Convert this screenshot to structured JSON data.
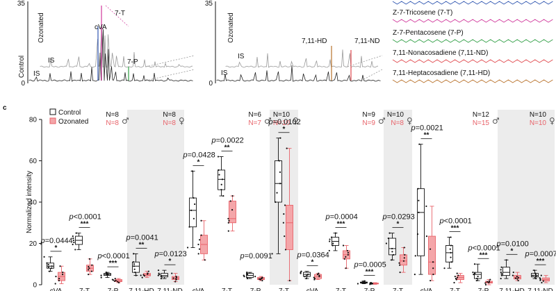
{
  "panel_top": {
    "left": {
      "ymax_label": "35",
      "zero_label": "0",
      "row_labels": [
        "Control",
        "Ozonated"
      ],
      "peak_labels": [
        {
          "text": "7-T",
          "color": "#d0379b"
        },
        {
          "text": "cVA",
          "color": "#2e55b0"
        },
        {
          "text": "7-P",
          "color": "#2f9e44"
        },
        {
          "text": "IS",
          "color": "#111111"
        },
        {
          "text": "IS",
          "color": "#111111"
        }
      ]
    },
    "right": {
      "ymax_label": "35",
      "zero_label": "0",
      "row_labels": [
        "Ozonated"
      ],
      "peak_labels": [
        {
          "text": "7,11-HD",
          "color": "#b8712a"
        },
        {
          "text": "7,11-ND",
          "color": "#e0474c"
        },
        {
          "text": "IS",
          "color": "#111111"
        },
        {
          "text": "IS",
          "color": "#111111"
        }
      ]
    },
    "compounds": [
      {
        "name": "Z-7-Tricosene (7-T)",
        "color": "#d0379b"
      },
      {
        "name": "Z-7-Pentacosene (7-P)",
        "color": "#2f9e44"
      },
      {
        "name": "7,11-Nonacosadiene (7,11-ND)",
        "color": "#e0474c"
      },
      {
        "name": "7,11-Heptacosadiene (7,11-HD)",
        "color": "#b8712a"
      }
    ]
  },
  "panel_label": "c",
  "chart_data": {
    "type": "box",
    "ylabel": "Normalized intensity",
    "ylim": [
      0,
      80
    ],
    "yticks": [
      0,
      20,
      40,
      60,
      80
    ],
    "legend": [
      {
        "name": "Control",
        "color": "#ffffff",
        "edge": "#111111"
      },
      {
        "name": "Ozonated",
        "color": "#f4a6a9",
        "edge": "#e8636a"
      }
    ],
    "groups": [
      {
        "sex": "♂",
        "n_control": "N=8",
        "n_ozonated": "N=8",
        "shaded": false,
        "categories": [
          "cVA",
          "7-T",
          "7-P"
        ],
        "control": [
          [
            6.5,
            8,
            9,
            10.5,
            13.5
          ],
          [
            17,
            19.5,
            21.5,
            23.5,
            25
          ],
          [
            3.5,
            4.5,
            5,
            5.5,
            6
          ]
        ],
        "ozonated": [
          [
            0.5,
            2,
            4,
            6,
            9
          ],
          [
            5,
            6.5,
            8,
            9.5,
            12.5
          ],
          [
            1,
            1.5,
            2,
            2.5,
            3
          ]
        ],
        "pvalues": [
          "0.0444",
          "<0.0001",
          "<0.0001"
        ],
        "stars": [
          "*",
          "***",
          "***"
        ]
      },
      {
        "sex": "♀",
        "n_control": "N=8",
        "n_ozonated": "N=8",
        "shaded": true,
        "categories": [
          "7,11-HD",
          "7,11-ND"
        ],
        "control": [
          [
            4.5,
            6,
            9,
            11,
            15
          ],
          [
            3,
            3.8,
            4.5,
            5.5,
            7
          ]
        ],
        "ozonated": [
          [
            3.5,
            4.3,
            4.8,
            5.5,
            6.5
          ],
          [
            1.5,
            2.5,
            3.2,
            4,
            5.5
          ]
        ],
        "pvalues": [
          "0.0041",
          "0.0123"
        ],
        "stars": [
          "**",
          "*"
        ]
      },
      {
        "sex": "♂",
        "n_control": "N=6",
        "n_ozonated": "N=7",
        "shaded": false,
        "categories": [
          "cVA",
          "7-T",
          "7-P"
        ],
        "control": [
          [
            18,
            28,
            36,
            42,
            55
          ],
          [
            43,
            46,
            51,
            55.5,
            62
          ]
        ],
        "ozonated": [
          [
            12,
            15,
            19.5,
            24,
            31
          ],
          [
            26,
            30,
            32,
            40.5,
            43
          ]
        ],
        "control_p": [
          3,
          3.5,
          4.5,
          5.5,
          6
        ],
        "ozonated_p": [
          2,
          2.5,
          3,
          3.5,
          4
        ],
        "pvalues": [
          "0.0428",
          "0.0022",
          "0.0091"
        ],
        "stars": [
          "*",
          "**",
          ""
        ]
      },
      {
        "sex": "♀",
        "n_control": "N=10",
        "n_ozonated": "N=10",
        "shaded": true,
        "categories": [
          "7-T"
        ],
        "control": [
          [
            15,
            40,
            49,
            60,
            71
          ]
        ],
        "ozonated": [
          [
            2,
            17,
            30,
            38.5,
            66
          ]
        ],
        "pvalues": [
          "0.0102"
        ],
        "stars": [
          "*"
        ]
      },
      {
        "sex": "♂",
        "n_control": "N=9",
        "n_ozonated": "N=9",
        "shaded": false,
        "categories": [
          "cVA",
          "7-T",
          "7-P"
        ],
        "control": [
          [
            3,
            4,
            5,
            6,
            6.5
          ],
          [
            16.5,
            19,
            21,
            23,
            25
          ],
          [
            0.5,
            0.8,
            1,
            1.3,
            1.8
          ]
        ],
        "ozonated": [
          [
            2.5,
            3,
            4,
            5,
            5.5
          ],
          [
            8,
            12.5,
            14.5,
            16.5,
            19
          ],
          [
            0.2,
            0.4,
            0.6,
            0.8,
            1
          ]
        ],
        "pvalues": [
          "0.0364",
          "0.0004",
          "0.0005"
        ],
        "stars": [
          "*",
          "***",
          "***"
        ]
      },
      {
        "sex": "♀",
        "n_control": "N=10",
        "n_ozonated": "N=8",
        "shaded": true,
        "categories": [
          "7-T"
        ],
        "control": [
          [
            12,
            14.5,
            17.5,
            22.5,
            25
          ]
        ],
        "ozonated": [
          [
            6,
            9.5,
            11.5,
            14.5,
            18
          ]
        ],
        "pvalues": [
          "0.0293"
        ],
        "stars": [
          "*"
        ]
      },
      {
        "sex": "♂",
        "n_control": "N=12",
        "n_ozonated": "N=15",
        "shaded": false,
        "categories": [
          "cVA",
          "7-T",
          "7-P"
        ],
        "control": [
          [
            5,
            14,
            35,
            46.5,
            68
          ],
          [
            8,
            11,
            15.5,
            19,
            23
          ],
          [
            2,
            3,
            5,
            6,
            10
          ]
        ],
        "ozonated": [
          [
            2,
            5,
            11,
            23.5,
            38
          ],
          [
            1,
            2.5,
            3.5,
            4.5,
            5.5
          ],
          [
            0,
            0.8,
            1.2,
            1.7,
            2.5
          ]
        ],
        "pvalues": [
          "0.0021",
          "<0.0001",
          "<0.0001"
        ],
        "stars": [
          "**",
          "***",
          "***"
        ]
      },
      {
        "sex": "♀",
        "n_control": "N=10",
        "n_ozonated": "N=10",
        "shaded": true,
        "categories": [
          "7,11-HD",
          "7,11-ND"
        ],
        "control": [
          [
            3,
            4.5,
            6,
            8.5,
            12
          ],
          [
            3,
            3.8,
            4.5,
            5.5,
            7
          ]
        ],
        "ozonated": [
          [
            2,
            2.8,
            3.5,
            4.5,
            6
          ],
          [
            1,
            1.8,
            2.5,
            3.3,
            4.5
          ]
        ],
        "pvalues": [
          "0.0100",
          "0.0007"
        ],
        "stars": [
          "*",
          "***"
        ]
      }
    ],
    "xtick_labels": [
      "cVA",
      "7-T",
      "7-P",
      "7,11-HD",
      "7,11-ND",
      "cVA",
      "7-T",
      "7-P",
      "7-T",
      "cVA",
      "7-T",
      "7-P",
      "7-T",
      "cVA",
      "7-T",
      "7-P",
      "7,11-HD",
      "7,11-ND"
    ]
  }
}
